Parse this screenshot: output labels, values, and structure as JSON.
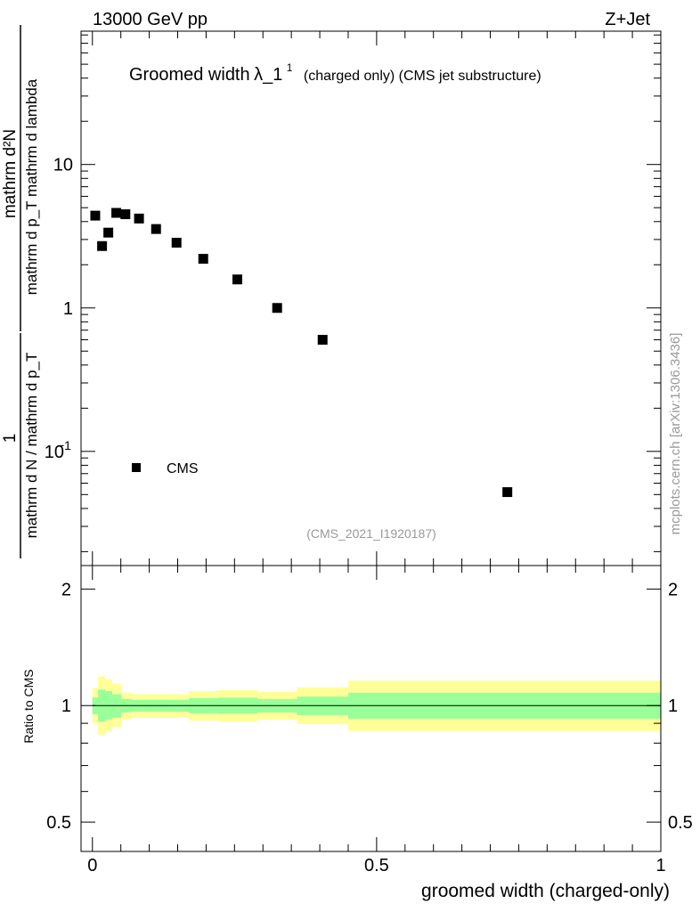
{
  "header": {
    "left": "13000 GeV pp",
    "right": "Z+Jet"
  },
  "side_label": "mcplots.cern.ch [arXiv:1306.3436]",
  "chart_data": [
    {
      "type": "scatter",
      "title_main": "Groomed width",
      "title_lambda": "λ_1",
      "title_sup": "1",
      "title_rest": "(charged only) (CMS jet substructure)",
      "watermark": "(CMS_2021_I1920187)",
      "ylabel_num": "mathrm d²N",
      "ylabel_den": "mathrm d p_T mathrm d lambda",
      "ylabel_prefix_num": "1",
      "ylabel_prefix_den": "mathrm d N / mathrm d p_T",
      "yscale": "log",
      "ylim": [
        0.016,
        85
      ],
      "xlim": [
        -0.02,
        1.0
      ],
      "y_ticks": [
        {
          "value": 10,
          "label": "10"
        },
        {
          "value": 1,
          "label": "1"
        },
        {
          "value": 0.1,
          "label": "10",
          "sup": "−1"
        }
      ],
      "legend": {
        "label": "CMS",
        "position": "bottom-left"
      },
      "series": [
        {
          "name": "CMS",
          "points": [
            {
              "x": 0.005,
              "y": 4.4
            },
            {
              "x": 0.017,
              "y": 2.7
            },
            {
              "x": 0.028,
              "y": 3.35
            },
            {
              "x": 0.042,
              "y": 4.6
            },
            {
              "x": 0.058,
              "y": 4.5
            },
            {
              "x": 0.082,
              "y": 4.2
            },
            {
              "x": 0.112,
              "y": 3.55
            },
            {
              "x": 0.148,
              "y": 2.85
            },
            {
              "x": 0.195,
              "y": 2.2
            },
            {
              "x": 0.255,
              "y": 1.58
            },
            {
              "x": 0.325,
              "y": 1.0
            },
            {
              "x": 0.405,
              "y": 0.6
            },
            {
              "x": 0.73,
              "y": 0.052
            }
          ]
        }
      ]
    },
    {
      "type": "area",
      "ylabel": "Ratio to CMS",
      "xlabel": "groomed width (charged-only)",
      "xlim": [
        -0.02,
        1.0
      ],
      "ylim": [
        0.42,
        2.3
      ],
      "yscale": "log",
      "x_ticks": [
        {
          "value": 0,
          "label": "0"
        },
        {
          "value": 0.5,
          "label": "0.5"
        },
        {
          "value": 1,
          "label": "1"
        }
      ],
      "y_ticks": [
        {
          "value": 2,
          "label": "2"
        },
        {
          "value": 1,
          "label": "1"
        },
        {
          "value": 0.5,
          "label": "0.5"
        }
      ],
      "bands": [
        {
          "x0": 0.0,
          "x1": 0.01,
          "yellow": [
            0.9,
            1.11
          ],
          "green": [
            0.95,
            1.05
          ]
        },
        {
          "x0": 0.01,
          "x1": 0.022,
          "yellow": [
            0.84,
            1.19
          ],
          "green": [
            0.91,
            1.1
          ]
        },
        {
          "x0": 0.022,
          "x1": 0.034,
          "yellow": [
            0.86,
            1.17
          ],
          "green": [
            0.92,
            1.09
          ]
        },
        {
          "x0": 0.034,
          "x1": 0.05,
          "yellow": [
            0.88,
            1.14
          ],
          "green": [
            0.93,
            1.07
          ]
        },
        {
          "x0": 0.05,
          "x1": 0.068,
          "yellow": [
            0.92,
            1.08
          ],
          "green": [
            0.96,
            1.04
          ]
        },
        {
          "x0": 0.068,
          "x1": 0.096,
          "yellow": [
            0.93,
            1.07
          ],
          "green": [
            0.965,
            1.035
          ]
        },
        {
          "x0": 0.096,
          "x1": 0.13,
          "yellow": [
            0.93,
            1.07
          ],
          "green": [
            0.965,
            1.035
          ]
        },
        {
          "x0": 0.13,
          "x1": 0.17,
          "yellow": [
            0.93,
            1.07
          ],
          "green": [
            0.965,
            1.035
          ]
        },
        {
          "x0": 0.17,
          "x1": 0.22,
          "yellow": [
            0.915,
            1.09
          ],
          "green": [
            0.955,
            1.045
          ]
        },
        {
          "x0": 0.22,
          "x1": 0.29,
          "yellow": [
            0.91,
            1.095
          ],
          "green": [
            0.953,
            1.048
          ]
        },
        {
          "x0": 0.29,
          "x1": 0.36,
          "yellow": [
            0.92,
            1.085
          ],
          "green": [
            0.96,
            1.04
          ]
        },
        {
          "x0": 0.36,
          "x1": 0.45,
          "yellow": [
            0.895,
            1.115
          ],
          "green": [
            0.945,
            1.055
          ]
        },
        {
          "x0": 0.45,
          "x1": 1.0,
          "yellow": [
            0.86,
            1.16
          ],
          "green": [
            0.925,
            1.08
          ]
        }
      ]
    }
  ]
}
